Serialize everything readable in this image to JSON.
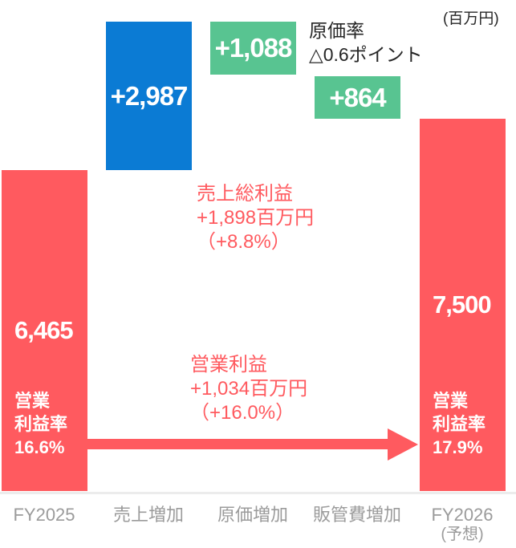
{
  "chart_data": {
    "type": "bar",
    "subtype": "waterfall",
    "unit_label": "(百万円)",
    "value_unit": "百万円",
    "ylim": [
      0,
      9452
    ],
    "grid": false,
    "legend": false,
    "categories": [
      "FY2025",
      "売上増加",
      "原価増加",
      "販管費増加",
      "FY2026(予想)"
    ],
    "bars": [
      {
        "category": "FY2025",
        "role": "total",
        "value": 6465,
        "label": "6,465",
        "cumulative_from": 0,
        "cumulative_to": 6465,
        "color": "#FF5A5F",
        "extra_lines": [
          "営業",
          "利益率",
          "16.6%"
        ]
      },
      {
        "category": "売上増加",
        "role": "increase",
        "value": 2987,
        "label": "+2,987",
        "cumulative_from": 6465,
        "cumulative_to": 9452,
        "color": "#0B7BD4"
      },
      {
        "category": "原価増加",
        "role": "decrease",
        "value": 1088,
        "label": "+1,088",
        "cumulative_from": 9452,
        "cumulative_to": 8364,
        "color": "#58C491"
      },
      {
        "category": "販管費増加",
        "role": "decrease",
        "value": 864,
        "label": "+864",
        "cumulative_from": 8364,
        "cumulative_to": 7500,
        "color": "#58C491"
      },
      {
        "category": "FY2026(予想)",
        "role": "total",
        "value": 7500,
        "label": "7,500",
        "cumulative_from": 0,
        "cumulative_to": 7500,
        "color": "#FF5A5F",
        "extra_lines": [
          "営業",
          "利益率",
          "17.9%"
        ]
      }
    ],
    "x_labels": [
      {
        "line1": "FY2025",
        "line2": ""
      },
      {
        "line1": "売上増加",
        "line2": ""
      },
      {
        "line1": "原価増加",
        "line2": ""
      },
      {
        "line1": "販管費増加",
        "line2": ""
      },
      {
        "line1": "FY2026",
        "line2": "(予想)"
      }
    ],
    "annotations": {
      "cost_ratio": {
        "lines": [
          "原価率",
          "△0.6ポイント"
        ],
        "color": "#262626"
      },
      "gross_profit": {
        "lines": [
          "売上総利益",
          "+1,898百万円",
          "（+8.8%）"
        ],
        "color": "#FF5A5F"
      },
      "operating_profit": {
        "lines": [
          "営業利益",
          "+1,034百万円",
          "（+16.0%）"
        ],
        "color": "#FF5A5F"
      },
      "margin_arrow": {
        "from_value": "16.6%",
        "to_value": "17.9%",
        "color": "#FF5A5F"
      }
    },
    "colors": {
      "total_bar": "#FF5A5F",
      "increase_bar": "#0B7BD4",
      "decrease_bar": "#58C491",
      "axis_label": "#9B9B9B",
      "axis_line": "#ECECEC",
      "dark_text": "#262626"
    }
  }
}
